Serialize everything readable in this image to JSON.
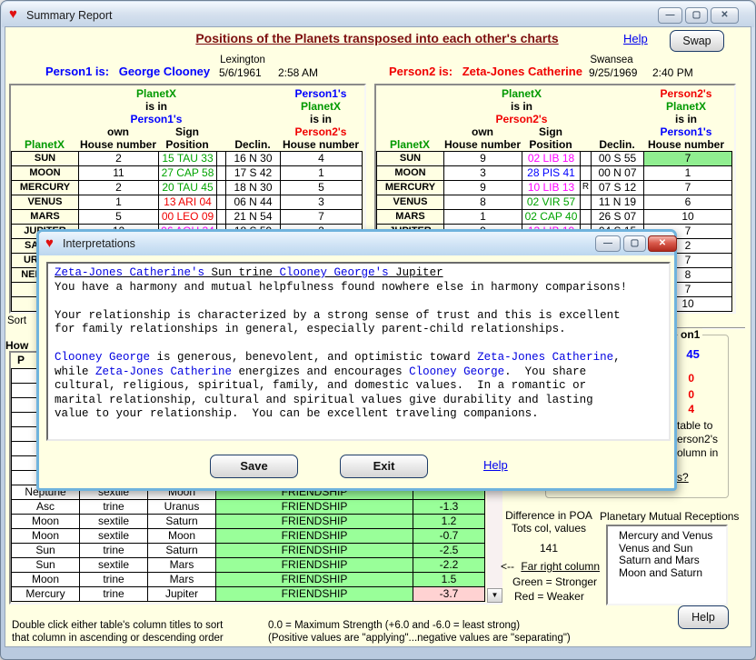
{
  "window": {
    "title": "Summary Report",
    "heading": "Positions of the Planets transposed into each other's charts",
    "help_link": "Help",
    "swap_button": "Swap",
    "minimize_glyph": "—",
    "maximize_glyph": "▢",
    "close_glyph": "✕"
  },
  "person1": {
    "label": "Person1 is:",
    "name": "George Clooney",
    "city": "Lexington",
    "date": "5/6/1961",
    "time": "2:58 AM"
  },
  "person2": {
    "label": "Person2 is:",
    "name": "Zeta-Jones Catherine",
    "city": "Swansea",
    "date": "9/25/1969",
    "time": "2:40 PM"
  },
  "hdr": {
    "planetx": "PlanetX",
    "isin": "is in",
    "p1": "Person1's",
    "p2": "Person2's",
    "own": "own",
    "house": "House number",
    "sign": "Sign",
    "pos": "Position",
    "declin": "Declin."
  },
  "left_table": {
    "rows": [
      {
        "planet": "SUN",
        "own": "2",
        "sign": "15 TAU 33",
        "sc": "green",
        "r": "",
        "dec": "16 N 30",
        "oth": "4",
        "hl": false
      },
      {
        "planet": "MOON",
        "own": "11",
        "sign": "27 CAP 58",
        "sc": "green",
        "r": "",
        "dec": "17 S 42",
        "oth": "1",
        "hl": false
      },
      {
        "planet": "MERCURY",
        "own": "2",
        "sign": "20 TAU 45",
        "sc": "green",
        "r": "",
        "dec": "18 N 30",
        "oth": "5",
        "hl": false
      },
      {
        "planet": "VENUS",
        "own": "1",
        "sign": "13 ARI 04",
        "sc": "red",
        "r": "",
        "dec": "06 N 44",
        "oth": "3",
        "hl": false
      },
      {
        "planet": "MARS",
        "own": "5",
        "sign": "00 LEO 09",
        "sc": "red",
        "r": "",
        "dec": "21 N 54",
        "oth": "7",
        "hl": false
      },
      {
        "planet": "JUPITER",
        "own": "12",
        "sign": "06 AQU 34",
        "sc": "magenta",
        "r": "",
        "dec": "18 S 59",
        "oth": "2",
        "hl": false
      },
      {
        "planet": "SATURN",
        "own": "",
        "sign": "",
        "sc": "",
        "r": "",
        "dec": "",
        "oth": "",
        "hl": false
      },
      {
        "planet": "URANUS",
        "own": "",
        "sign": "",
        "sc": "",
        "r": "",
        "dec": "",
        "oth": "",
        "hl": false
      },
      {
        "planet": "NEPTUNE",
        "own": "",
        "sign": "",
        "sc": "",
        "r": "",
        "dec": "",
        "oth": "",
        "hl": false
      },
      {
        "planet": "",
        "own": "",
        "sign": "",
        "sc": "",
        "r": "",
        "dec": "",
        "oth": "",
        "hl": false
      },
      {
        "planet": "",
        "own": "",
        "sign": "",
        "sc": "",
        "r": "",
        "dec": "",
        "oth": "",
        "hl": false
      }
    ]
  },
  "right_table": {
    "rows": [
      {
        "planet": "SUN",
        "own": "9",
        "sign": "02 LIB 18",
        "sc": "magenta",
        "r": "",
        "dec": "00 S 55",
        "oth": "7",
        "hl": true
      },
      {
        "planet": "MOON",
        "own": "3",
        "sign": "28 PIS 41",
        "sc": "blue",
        "r": "",
        "dec": "00 N 07",
        "oth": "1",
        "hl": false
      },
      {
        "planet": "MERCURY",
        "own": "9",
        "sign": "10 LIB 13",
        "sc": "magenta",
        "r": "R",
        "dec": "07 S 12",
        "oth": "7",
        "hl": false
      },
      {
        "planet": "VENUS",
        "own": "8",
        "sign": "02 VIR 57",
        "sc": "green",
        "r": "",
        "dec": "11 N 19",
        "oth": "6",
        "hl": false
      },
      {
        "planet": "MARS",
        "own": "1",
        "sign": "02 CAP 40",
        "sc": "green",
        "r": "",
        "dec": "26 S 07",
        "oth": "10",
        "hl": false
      },
      {
        "planet": "JUPITER",
        "own": "9",
        "sign": "13 LIB 19",
        "sc": "magenta",
        "r": "",
        "dec": "04 S 15",
        "oth": "7",
        "hl": false
      },
      {
        "planet": "",
        "own": "",
        "sign": "",
        "sc": "",
        "r": "",
        "dec": "",
        "oth": "2",
        "hl": false
      },
      {
        "planet": "",
        "own": "",
        "sign": "",
        "sc": "",
        "r": "",
        "dec": "",
        "oth": "7",
        "hl": false
      },
      {
        "planet": "",
        "own": "",
        "sign": "",
        "sc": "",
        "r": "",
        "dec": "",
        "oth": "8",
        "hl": false
      },
      {
        "planet": "",
        "own": "",
        "sign": "",
        "sc": "",
        "r": "",
        "dec": "",
        "oth": "7",
        "hl": false
      },
      {
        "planet": "",
        "own": "",
        "sign": "",
        "sc": "",
        "r": "",
        "dec": "",
        "oth": "10",
        "hl": false
      }
    ]
  },
  "aspects": {
    "header_fragment": "P",
    "rows": [
      {
        "p1": "",
        "asp": "",
        "p2": "",
        "cat": "",
        "val": "",
        "vbg": ""
      },
      {
        "p1": "",
        "asp": "",
        "p2": "",
        "cat": "",
        "val": "",
        "vbg": ""
      },
      {
        "p1": "",
        "asp": "",
        "p2": "",
        "cat": "",
        "val": "",
        "vbg": ""
      },
      {
        "p1": "",
        "asp": "",
        "p2": "",
        "cat": "",
        "val": "",
        "vbg": ""
      },
      {
        "p1": "",
        "asp": "",
        "p2": "",
        "cat": "",
        "val": "",
        "vbg": ""
      },
      {
        "p1": "",
        "asp": "",
        "p2": "",
        "cat": "",
        "val": "",
        "vbg": ""
      },
      {
        "p1": "",
        "asp": "",
        "p2": "",
        "cat": "",
        "val": "",
        "vbg": ""
      },
      {
        "p1": "",
        "asp": "",
        "p2": "",
        "cat": "",
        "val": "",
        "vbg": ""
      },
      {
        "p1": "Neptune",
        "asp": "sextile",
        "p2": "Moon",
        "cat": "FRIENDSHIP",
        "val": "",
        "vbg": "g"
      },
      {
        "p1": "Asc",
        "asp": "trine",
        "p2": "Uranus",
        "cat": "FRIENDSHIP",
        "val": "-1.3",
        "vbg": "g"
      },
      {
        "p1": "Moon",
        "asp": "sextile",
        "p2": "Saturn",
        "cat": "FRIENDSHIP",
        "val": "1.2",
        "vbg": "g"
      },
      {
        "p1": "Moon",
        "asp": "sextile",
        "p2": "Moon",
        "cat": "FRIENDSHIP",
        "val": "-0.7",
        "vbg": "g"
      },
      {
        "p1": "Sun",
        "asp": "trine",
        "p2": "Saturn",
        "cat": "FRIENDSHIP",
        "val": "-2.5",
        "vbg": "g"
      },
      {
        "p1": "Sun",
        "asp": "sextile",
        "p2": "Mars",
        "cat": "FRIENDSHIP",
        "val": "-2.2",
        "vbg": "g"
      },
      {
        "p1": "Moon",
        "asp": "trine",
        "p2": "Mars",
        "cat": "FRIENDSHIP",
        "val": "1.5",
        "vbg": "g"
      },
      {
        "p1": "Mercury",
        "asp": "trine",
        "p2": "Jupiter",
        "cat": "FRIENDSHIP",
        "val": "-3.7",
        "vbg": "p"
      }
    ]
  },
  "fragments": {
    "sort": "Sort",
    "how": "How",
    "panel_title": "on1",
    "colon": ":",
    "stat1": "45",
    "stat2": "0",
    "stat3": "0",
    "stat4": "4",
    "line1": "table to",
    "line2": "erson2's",
    "line3": "olumn in",
    "link": "s?"
  },
  "poa": {
    "line1": "Difference in POA",
    "line2": "Tots col, values",
    "value": "141"
  },
  "legend": {
    "arrow": "<--",
    "title": "Far right column",
    "green_line": "Green = Stronger",
    "red_line": "Red = Weaker"
  },
  "receptions": {
    "title": "Planetary Mutual Receptions",
    "items": [
      "Mercury and Venus",
      "Venus and Sun",
      "Saturn and Mars",
      "Moon and Saturn"
    ]
  },
  "footer": {
    "left1": "Double click either table's column titles to sort",
    "left2": "that column in ascending or descending order",
    "mid1": "0.0 = Maximum Strength   (+6.0 and -6.0 = least strong)",
    "mid2": "(Positive values are \"applying\"...negative values are \"separating\")",
    "help_button": "Help"
  },
  "dialog": {
    "title": "Interpretations",
    "save_button": "Save",
    "exit_button": "Exit",
    "help_link": "Help",
    "lines": [
      {
        "h": 1,
        "s": [
          {
            "t": "Zeta-Jones Catherine's",
            "b": 1
          },
          {
            "t": " Sun trine ",
            "b": 0
          },
          {
            "t": "Clooney George's",
            "b": 1
          },
          {
            "t": " Jupiter",
            "b": 0
          }
        ]
      },
      {
        "h": 0,
        "s": [
          {
            "t": "You have a harmony and mutual helpfulness found nowhere else in harmony comparisons!",
            "b": 0
          }
        ]
      },
      {
        "h": 0,
        "s": []
      },
      {
        "h": 0,
        "s": [
          {
            "t": "Your relationship is characterized by a strong sense of trust and this is excellent",
            "b": 0
          }
        ]
      },
      {
        "h": 0,
        "s": [
          {
            "t": "for family relationships in general, especially parent-child relationships.",
            "b": 0
          }
        ]
      },
      {
        "h": 0,
        "s": []
      },
      {
        "h": 0,
        "s": [
          {
            "t": "Clooney George",
            "b": 1
          },
          {
            "t": " is generous, benevolent, and optimistic toward ",
            "b": 0
          },
          {
            "t": "Zeta-Jones Catherine",
            "b": 1
          },
          {
            "t": ",",
            "b": 0
          }
        ]
      },
      {
        "h": 0,
        "s": [
          {
            "t": "while ",
            "b": 0
          },
          {
            "t": "Zeta-Jones Catherine",
            "b": 1
          },
          {
            "t": " energizes and encourages ",
            "b": 0
          },
          {
            "t": "Clooney George",
            "b": 1
          },
          {
            "t": ".  You share",
            "b": 0
          }
        ]
      },
      {
        "h": 0,
        "s": [
          {
            "t": "cultural, religious, spiritual, family, and domestic values.  In a romantic or",
            "b": 0
          }
        ]
      },
      {
        "h": 0,
        "s": [
          {
            "t": "marital relationship, cultural and spiritual values give durability and lasting",
            "b": 0
          }
        ]
      },
      {
        "h": 0,
        "s": [
          {
            "t": "value to your relationship.  You can be excellent traveling companions.",
            "b": 0
          }
        ]
      }
    ]
  },
  "colors": {
    "accent_green": "#99FF99",
    "accent_pink": "#FFD2D2",
    "highlight_green": "#90EE90"
  }
}
